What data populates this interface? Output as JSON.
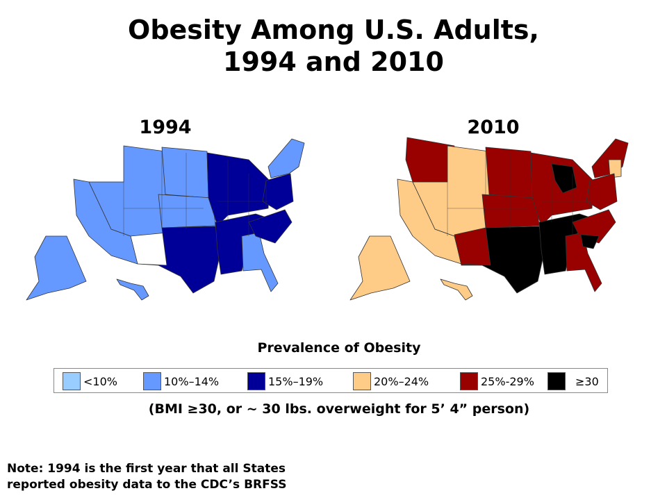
{
  "title": {
    "line1": "Obesity Among U.S. Adults,",
    "line2": "1994 and 2010"
  },
  "maps": [
    {
      "year": "1994",
      "regions": {
        "west": "10%–14%",
        "mountain": "10%–14%",
        "plains_north": "10%–14%",
        "plains_central": "10%–14%",
        "texas_oklahoma": "15%–19%",
        "midwest": "15%–19%",
        "south": "15%–19%",
        "florida_georgia": "10%–14%",
        "carolinas": "15%–19%",
        "northeast": "10%–14%",
        "mid_atlantic": "15%–19%",
        "alaska": "10%–14%",
        "hawaii": "10%–14%"
      }
    },
    {
      "year": "2010",
      "regions": {
        "west": "20%–24%",
        "pacific_nw": "25%-29%",
        "mountain": "20%–24%",
        "plains_north": "25%-29%",
        "plains_central": "25%-29%",
        "new_mexico": "25%-29%",
        "texas_oklahoma": "≥30",
        "midwest": "25%-29%",
        "michigan": "≥30",
        "south": "≥30",
        "florida_georgia": "25%-29%",
        "carolinas": "25%-29%",
        "south_carolina": "≥30",
        "northeast": "25%-29%",
        "new_england_south": "20%–24%",
        "mid_atlantic": "25%-29%",
        "alaska": "20%–24%",
        "hawaii": "20%–24%"
      }
    }
  ],
  "legend": {
    "title": "Prevalence of Obesity",
    "items": [
      {
        "label": "<10%",
        "color": "#99ccff"
      },
      {
        "label": "10%–14%",
        "color": "#6699ff"
      },
      {
        "label": "15%–19%",
        "color": "#000099"
      },
      {
        "label": "20%–24%",
        "color": "#ffcc88"
      },
      {
        "label": "25%-29%",
        "color": "#990000"
      },
      {
        "label": "≥30",
        "color": "#000000"
      }
    ],
    "note": "(BMI ≥30, or ~ 30 lbs. overweight for 5’ 4” person)"
  },
  "footnote": {
    "line1": "Note: 1994 is the first year that all States",
    "line2": "reported obesity data to the CDC’s BRFSS"
  }
}
